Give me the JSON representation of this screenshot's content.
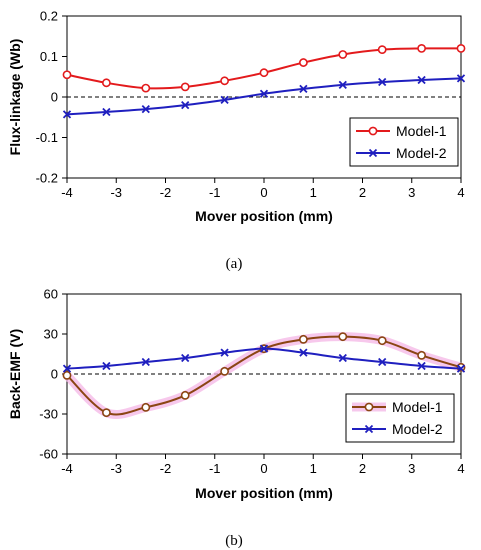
{
  "chart_data": [
    {
      "type": "line",
      "caption": "(a)",
      "xlabel": "Mover position (mm)",
      "ylabel": "Flux-linkage (Wb)",
      "xlim": [
        -4,
        4
      ],
      "ylim": [
        -0.2,
        0.2
      ],
      "xticks": [
        "-4",
        "-3",
        "-2",
        "-1",
        "0",
        "1",
        "2",
        "3",
        "4"
      ],
      "yticks": [
        "-0.2",
        "-0.1",
        "0",
        "0.1",
        "0.2"
      ],
      "zero_line": "dashed",
      "legend_position": "bottom-right",
      "x": [
        -4,
        -3.2,
        -2.4,
        -1.6,
        -0.8,
        0,
        0.8,
        1.6,
        2.4,
        3.2,
        4
      ],
      "series": [
        {
          "name": "Model-1",
          "color": "#e31a1c",
          "marker": "circle",
          "values": [
            0.055,
            0.035,
            0.022,
            0.025,
            0.04,
            0.06,
            0.085,
            0.105,
            0.117,
            0.12,
            0.12
          ]
        },
        {
          "name": "Model-2",
          "color": "#1f1fbf",
          "marker": "x",
          "values": [
            -0.043,
            -0.037,
            -0.03,
            -0.02,
            -0.007,
            0.008,
            0.02,
            0.03,
            0.037,
            0.042,
            0.046
          ]
        }
      ]
    },
    {
      "type": "line",
      "caption": "(b)",
      "xlabel": "Mover position (mm)",
      "ylabel": "Back-EMF (V)",
      "xlim": [
        -4,
        4
      ],
      "ylim": [
        -60,
        60
      ],
      "xticks": [
        "-4",
        "-3",
        "-2",
        "-1",
        "0",
        "1",
        "2",
        "3",
        "4"
      ],
      "yticks": [
        "-60",
        "-30",
        "0",
        "30",
        "60"
      ],
      "zero_line": "dashed",
      "legend_position": "bottom-right",
      "x": [
        -4,
        -3.2,
        -2.4,
        -1.6,
        -0.8,
        0,
        0.8,
        1.6,
        2.4,
        3.2,
        4
      ],
      "series": [
        {
          "name": "Model-1",
          "color": "#8b4513",
          "marker": "circle",
          "glow": "#f4b6e6",
          "values": [
            -1,
            -29,
            -25,
            -16,
            2,
            19,
            26,
            28,
            25,
            14,
            5
          ]
        },
        {
          "name": "Model-2",
          "color": "#1f1fbf",
          "marker": "x",
          "values": [
            4,
            6,
            9,
            12,
            16,
            19,
            16,
            12,
            9,
            6,
            4
          ]
        }
      ]
    }
  ]
}
